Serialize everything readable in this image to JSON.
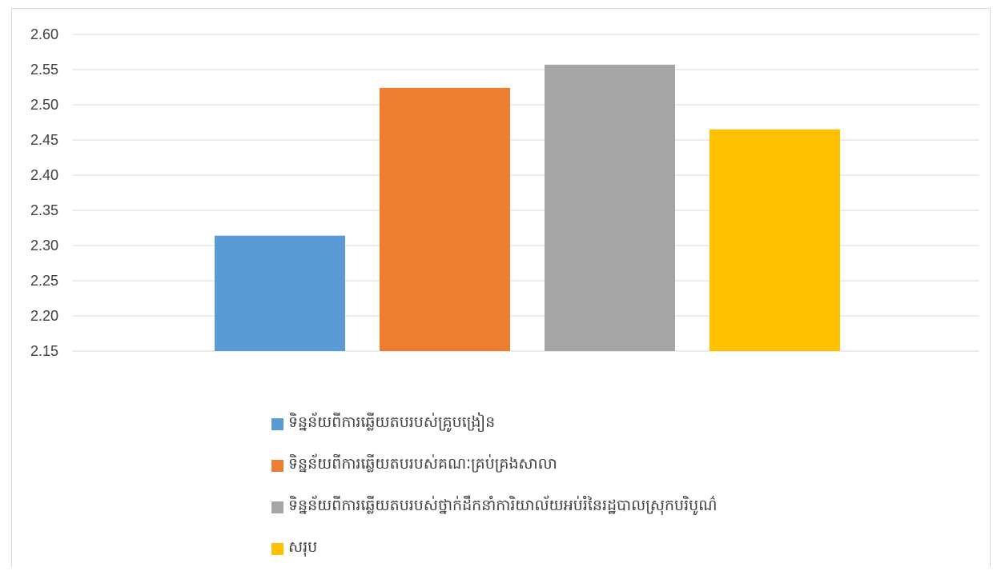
{
  "chart_data": {
    "type": "bar",
    "ylim": [
      2.15,
      2.6
    ],
    "ytick_step": 0.05,
    "yticks": [
      "2.15",
      "2.20",
      "2.25",
      "2.30",
      "2.35",
      "2.40",
      "2.45",
      "2.50",
      "2.55",
      "2.60"
    ],
    "grid": true,
    "legend_position": "bottom",
    "series": [
      {
        "name": "ទិន្នន័យពីការឆ្លើយតបរបស់គ្រូបង្រៀន",
        "value": 2.314,
        "color": "#5b9bd5"
      },
      {
        "name": "ទិន្នន័យពីការឆ្លើយតបរបស់គណៈគ្រប់គ្រងសាលា",
        "value": 2.524,
        "color": "#ed7d31"
      },
      {
        "name": "ទិន្នន័យពីការឆ្លើយតបរបស់ថ្នាក់ដឹកនាំការិយាល័យអប់រំនៃរដ្ឋបាលស្រុកបរិបូណ៌",
        "value": 2.557,
        "color": "#a5a5a5"
      },
      {
        "name": "សរុប",
        "value": 2.465,
        "color": "#ffc000"
      }
    ]
  }
}
